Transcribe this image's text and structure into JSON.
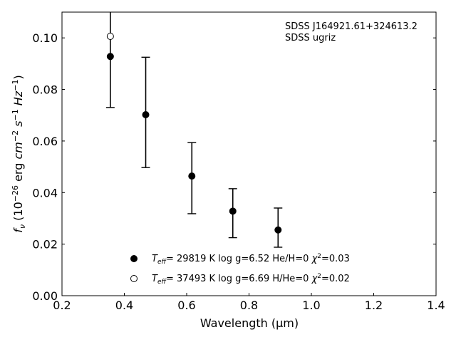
{
  "chart_data": {
    "type": "scatter",
    "annotation": [
      "SDSS J164921.61+324613.2",
      "SDSS ugriz"
    ],
    "xlabel": {
      "pre": "Wavelength (",
      "mu": "μ",
      "post": "m)"
    },
    "ylabel": {
      "f": "f",
      "nu": "ν",
      "a": " (10",
      "e1": "−26",
      "b": " erg ",
      "cm": "cm",
      "e2": "−2",
      "s": " s",
      "e3": "−1",
      "hz": " Hz",
      "e4": "−1",
      "c": ")"
    },
    "xlim": [
      0.2,
      1.4
    ],
    "ylim": [
      0.0,
      0.11
    ],
    "xticks": [
      "0.2",
      "0.4",
      "0.6",
      "0.8",
      "1.0",
      "1.2",
      "1.4"
    ],
    "yticks": [
      "0.00",
      "0.02",
      "0.04",
      "0.06",
      "0.08",
      "0.10"
    ],
    "grid": false,
    "legend_position": "bottom-center",
    "series": [
      {
        "marker": "filled-circle",
        "color": "#000000",
        "legend": {
          "T": "T",
          "sub": "eff",
          "text": "= 29819 K  log g=6.52  He/H=0  ",
          "chi": "χ",
          "sup": "2",
          "val": "=0.03"
        },
        "points": [
          {
            "x": 0.3551,
            "y": 0.0928,
            "err_low": 0.073,
            "err_high": 0.113
          },
          {
            "x": 0.4686,
            "y": 0.0702,
            "err_low": 0.0497,
            "err_high": 0.0925
          },
          {
            "x": 0.6166,
            "y": 0.0464,
            "err_low": 0.0318,
            "err_high": 0.0594
          },
          {
            "x": 0.748,
            "y": 0.0328,
            "err_low": 0.0225,
            "err_high": 0.0415
          },
          {
            "x": 0.8932,
            "y": 0.0255,
            "err_low": 0.0188,
            "err_high": 0.034
          }
        ]
      },
      {
        "marker": "open-circle",
        "color": "#000000",
        "legend": {
          "T": "T",
          "sub": "eff",
          "text": "= 37493 K  log g=6.69  H/He=0  ",
          "chi": "χ",
          "sup": "2",
          "val": "=0.02"
        },
        "points": [
          {
            "x": 0.3551,
            "y": 0.1006
          }
        ]
      }
    ]
  }
}
